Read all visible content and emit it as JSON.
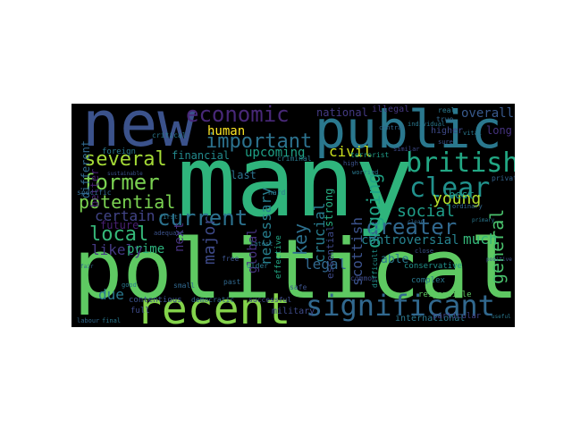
{
  "words": [
    {
      "text": "many",
      "color": "#2fb47c"
    },
    {
      "text": "political",
      "color": "#5ec962"
    },
    {
      "text": "new",
      "color": "#3b528b"
    },
    {
      "text": "public",
      "color": "#2a788e"
    },
    {
      "text": "recent",
      "color": "#84d44b"
    },
    {
      "text": "significant",
      "color": "#31688e"
    },
    {
      "text": "british",
      "color": "#22a884"
    },
    {
      "text": "clear",
      "color": "#21918c"
    },
    {
      "text": "economic",
      "color": "#482878"
    },
    {
      "text": "important",
      "color": "#2c728e"
    },
    {
      "text": "current",
      "color": "#2c728e"
    },
    {
      "text": "greater",
      "color": "#31688e"
    },
    {
      "text": "former",
      "color": "#7ad151"
    },
    {
      "text": "several",
      "color": "#a5db36"
    },
    {
      "text": "local",
      "color": "#35b779"
    },
    {
      "text": "potential",
      "color": "#7ad151"
    },
    {
      "text": "certain",
      "color": "#414487"
    },
    {
      "text": "social",
      "color": "#1f9e89"
    },
    {
      "text": "ongoing",
      "color": "#20a486"
    },
    {
      "text": "young",
      "color": "#b5de2b"
    },
    {
      "text": "general",
      "color": "#4ac16d"
    },
    {
      "text": "human",
      "color": "#fde725"
    },
    {
      "text": "upcoming",
      "color": "#1fa187"
    },
    {
      "text": "necessary",
      "color": "#277f8e"
    },
    {
      "text": "key",
      "color": "#2d708e"
    },
    {
      "text": "civil",
      "color": "#cde11d"
    },
    {
      "text": "crucial",
      "color": "#287c8e"
    },
    {
      "text": "strong",
      "color": "#26ad81"
    },
    {
      "text": "likely",
      "color": "#443983"
    },
    {
      "text": "major",
      "color": "#3e4a89"
    },
    {
      "text": "next",
      "color": "#46327e"
    },
    {
      "text": "global",
      "color": "#46337f"
    },
    {
      "text": "legal",
      "color": "#31688e"
    },
    {
      "text": "controversial",
      "color": "#26828e"
    },
    {
      "text": "able",
      "color": "#2a788e"
    },
    {
      "text": "scottish",
      "color": "#3b528b"
    },
    {
      "text": "due",
      "color": "#2a788e"
    },
    {
      "text": "future",
      "color": "#482173"
    },
    {
      "text": "prime",
      "color": "#2db27d"
    },
    {
      "text": "better",
      "color": "#482071"
    },
    {
      "text": "much",
      "color": "#35b779"
    },
    {
      "text": "national",
      "color": "#443a83"
    },
    {
      "text": "overall",
      "color": "#38598c"
    },
    {
      "text": "financial",
      "color": "#238a8d"
    },
    {
      "text": "best",
      "color": "#1f968b"
    },
    {
      "text": "different",
      "color": "#31688e"
    },
    {
      "text": "last",
      "color": "#2c728e"
    },
    {
      "text": "long",
      "color": "#46337f"
    },
    {
      "text": "essential",
      "color": "#3e4989"
    },
    {
      "text": "international",
      "color": "#2a788e"
    },
    {
      "text": "responsible",
      "color": "#5ec962"
    },
    {
      "text": "military",
      "color": "#3e4a89"
    },
    {
      "text": "illegal",
      "color": "#453781"
    },
    {
      "text": "higher",
      "color": "#3e4a89"
    },
    {
      "text": "foreign",
      "color": "#2a788e"
    },
    {
      "text": "conservative",
      "color": "#21918c"
    },
    {
      "text": "contentious",
      "color": "#3b528b"
    },
    {
      "text": "democratic",
      "color": "#31688e"
    },
    {
      "text": "successful",
      "color": "#3e4a89"
    },
    {
      "text": "complex",
      "color": "#2a788e"
    },
    {
      "text": "terrorist",
      "color": "#1f9e89"
    },
    {
      "text": "criminal",
      "color": "#2a788e"
    },
    {
      "text": "effective",
      "color": "#22a884"
    },
    {
      "text": "particular",
      "color": "#414487"
    },
    {
      "text": "private",
      "color": "#33638d"
    },
    {
      "text": "free",
      "color": "#3b528b"
    },
    {
      "text": "real",
      "color": "#2a788e"
    },
    {
      "text": "full",
      "color": "#3e4a89"
    },
    {
      "text": "small",
      "color": "#31688e"
    },
    {
      "text": "specific",
      "color": "#31688e"
    },
    {
      "text": "hard",
      "color": "#2a788e"
    },
    {
      "text": "safe",
      "color": "#3b528b"
    },
    {
      "text": "common",
      "color": "#3e4a89"
    },
    {
      "text": "critical",
      "color": "#2a788e"
    },
    {
      "text": "adequate",
      "color": "#3b528b"
    },
    {
      "text": "past",
      "color": "#31688e"
    },
    {
      "text": "older",
      "color": "#2a788e"
    },
    {
      "text": "difficult",
      "color": "#21918c"
    },
    {
      "text": "latest",
      "color": "#2a788e"
    },
    {
      "text": "high",
      "color": "#3b528b"
    },
    {
      "text": "worried",
      "color": "#2a788e"
    },
    {
      "text": "similar",
      "color": "#3e4a89"
    },
    {
      "text": "labour",
      "color": "#31688e"
    },
    {
      "text": "final",
      "color": "#2a788e"
    },
    {
      "text": "close",
      "color": "#3b528b"
    },
    {
      "text": "vital",
      "color": "#2a788e"
    },
    {
      "text": "true",
      "color": "#31688e"
    },
    {
      "text": "sure",
      "color": "#3b528b"
    },
    {
      "text": "first",
      "color": "#2a788e"
    },
    {
      "text": "central",
      "color": "#31688e"
    },
    {
      "text": "individual",
      "color": "#2a788e"
    },
    {
      "text": "ordinary",
      "color": "#31688e"
    },
    {
      "text": "primary",
      "color": "#2a788e"
    },
    {
      "text": "sustainable",
      "color": "#3b528b"
    },
    {
      "text": "fair",
      "color": "#31688e"
    },
    {
      "text": "good",
      "color": "#2a788e"
    },
    {
      "text": "positive",
      "color": "#3b528b"
    },
    {
      "text": "clean",
      "color": "#31688e"
    },
    {
      "text": "useful",
      "color": "#2a788e"
    }
  ]
}
